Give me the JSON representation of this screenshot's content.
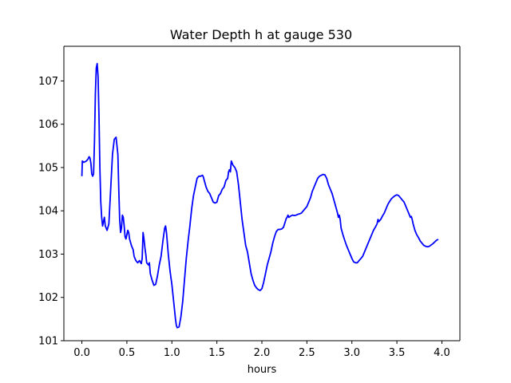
{
  "chart_data": {
    "type": "line",
    "title": "Water Depth h at gauge 530",
    "xlabel": "hours",
    "ylabel": "",
    "xlim": [
      -0.2,
      4.2
    ],
    "ylim": [
      101.0,
      107.8
    ],
    "grid": false,
    "x_ticks": [
      0.0,
      0.5,
      1.0,
      1.5,
      2.0,
      2.5,
      3.0,
      3.5,
      4.0
    ],
    "x_tick_labels": [
      "0.0",
      "0.5",
      "1.0",
      "1.5",
      "2.0",
      "2.5",
      "3.0",
      "3.5",
      "4.0"
    ],
    "y_ticks": [
      101,
      102,
      103,
      104,
      105,
      106,
      107
    ],
    "y_tick_labels": [
      "101",
      "102",
      "103",
      "104",
      "105",
      "106",
      "107"
    ],
    "series": [
      {
        "color": "#0000ff",
        "points": [
          [
            0.0,
            104.8
          ],
          [
            0.005,
            105.15
          ],
          [
            0.02,
            105.12
          ],
          [
            0.05,
            105.15
          ],
          [
            0.07,
            105.2
          ],
          [
            0.08,
            105.25
          ],
          [
            0.09,
            105.22
          ],
          [
            0.1,
            105.1
          ],
          [
            0.11,
            104.85
          ],
          [
            0.12,
            104.8
          ],
          [
            0.13,
            104.85
          ],
          [
            0.14,
            105.6
          ],
          [
            0.15,
            106.7
          ],
          [
            0.16,
            107.3
          ],
          [
            0.17,
            107.4
          ],
          [
            0.18,
            107.1
          ],
          [
            0.19,
            106.2
          ],
          [
            0.2,
            105.0
          ],
          [
            0.21,
            104.2
          ],
          [
            0.22,
            103.85
          ],
          [
            0.23,
            103.65
          ],
          [
            0.24,
            103.75
          ],
          [
            0.25,
            103.85
          ],
          [
            0.26,
            103.65
          ],
          [
            0.28,
            103.55
          ],
          [
            0.3,
            103.7
          ],
          [
            0.32,
            104.5
          ],
          [
            0.34,
            105.3
          ],
          [
            0.36,
            105.65
          ],
          [
            0.38,
            105.7
          ],
          [
            0.4,
            105.3
          ],
          [
            0.41,
            104.5
          ],
          [
            0.42,
            103.8
          ],
          [
            0.43,
            103.5
          ],
          [
            0.44,
            103.6
          ],
          [
            0.45,
            103.9
          ],
          [
            0.46,
            103.85
          ],
          [
            0.47,
            103.65
          ],
          [
            0.48,
            103.4
          ],
          [
            0.49,
            103.35
          ],
          [
            0.5,
            103.45
          ],
          [
            0.51,
            103.55
          ],
          [
            0.52,
            103.5
          ],
          [
            0.53,
            103.35
          ],
          [
            0.55,
            103.2
          ],
          [
            0.57,
            103.1
          ],
          [
            0.58,
            102.95
          ],
          [
            0.6,
            102.85
          ],
          [
            0.62,
            102.8
          ],
          [
            0.64,
            102.85
          ],
          [
            0.66,
            102.78
          ],
          [
            0.67,
            102.9
          ],
          [
            0.68,
            103.5
          ],
          [
            0.69,
            103.35
          ],
          [
            0.7,
            103.15
          ],
          [
            0.71,
            103.0
          ],
          [
            0.72,
            102.8
          ],
          [
            0.74,
            102.75
          ],
          [
            0.75,
            102.8
          ],
          [
            0.76,
            102.55
          ],
          [
            0.78,
            102.4
          ],
          [
            0.8,
            102.28
          ],
          [
            0.82,
            102.3
          ],
          [
            0.84,
            102.5
          ],
          [
            0.86,
            102.75
          ],
          [
            0.88,
            102.95
          ],
          [
            0.9,
            103.3
          ],
          [
            0.92,
            103.6
          ],
          [
            0.93,
            103.65
          ],
          [
            0.94,
            103.5
          ],
          [
            0.96,
            103.0
          ],
          [
            0.98,
            102.6
          ],
          [
            1.0,
            102.3
          ],
          [
            1.02,
            101.9
          ],
          [
            1.04,
            101.5
          ],
          [
            1.05,
            101.35
          ],
          [
            1.06,
            101.3
          ],
          [
            1.08,
            101.32
          ],
          [
            1.1,
            101.55
          ],
          [
            1.12,
            101.9
          ],
          [
            1.14,
            102.4
          ],
          [
            1.16,
            102.9
          ],
          [
            1.18,
            103.3
          ],
          [
            1.2,
            103.65
          ],
          [
            1.22,
            104.05
          ],
          [
            1.24,
            104.35
          ],
          [
            1.26,
            104.55
          ],
          [
            1.28,
            104.75
          ],
          [
            1.3,
            104.8
          ],
          [
            1.32,
            104.8
          ],
          [
            1.34,
            104.82
          ],
          [
            1.35,
            104.78
          ],
          [
            1.36,
            104.7
          ],
          [
            1.38,
            104.55
          ],
          [
            1.4,
            104.45
          ],
          [
            1.42,
            104.4
          ],
          [
            1.44,
            104.3
          ],
          [
            1.46,
            104.2
          ],
          [
            1.48,
            104.18
          ],
          [
            1.5,
            104.2
          ],
          [
            1.52,
            104.35
          ],
          [
            1.54,
            104.4
          ],
          [
            1.56,
            104.5
          ],
          [
            1.58,
            104.55
          ],
          [
            1.6,
            104.7
          ],
          [
            1.62,
            104.75
          ],
          [
            1.63,
            104.9
          ],
          [
            1.64,
            104.95
          ],
          [
            1.65,
            104.9
          ],
          [
            1.66,
            105.15
          ],
          [
            1.67,
            105.1
          ],
          [
            1.68,
            105.05
          ],
          [
            1.7,
            105.0
          ],
          [
            1.72,
            104.9
          ],
          [
            1.74,
            104.6
          ],
          [
            1.76,
            104.2
          ],
          [
            1.78,
            103.8
          ],
          [
            1.8,
            103.5
          ],
          [
            1.82,
            103.2
          ],
          [
            1.84,
            103.05
          ],
          [
            1.86,
            102.8
          ],
          [
            1.88,
            102.55
          ],
          [
            1.9,
            102.4
          ],
          [
            1.92,
            102.28
          ],
          [
            1.94,
            102.22
          ],
          [
            1.96,
            102.18
          ],
          [
            1.98,
            102.16
          ],
          [
            2.0,
            102.2
          ],
          [
            2.02,
            102.35
          ],
          [
            2.04,
            102.55
          ],
          [
            2.06,
            102.75
          ],
          [
            2.08,
            102.9
          ],
          [
            2.1,
            103.05
          ],
          [
            2.12,
            103.25
          ],
          [
            2.14,
            103.4
          ],
          [
            2.16,
            103.52
          ],
          [
            2.18,
            103.57
          ],
          [
            2.2,
            103.57
          ],
          [
            2.22,
            103.58
          ],
          [
            2.24,
            103.62
          ],
          [
            2.26,
            103.75
          ],
          [
            2.27,
            103.82
          ],
          [
            2.28,
            103.85
          ],
          [
            2.29,
            103.9
          ],
          [
            2.3,
            103.85
          ],
          [
            2.32,
            103.88
          ],
          [
            2.34,
            103.9
          ],
          [
            2.36,
            103.89
          ],
          [
            2.38,
            103.9
          ],
          [
            2.4,
            103.92
          ],
          [
            2.42,
            103.93
          ],
          [
            2.44,
            103.95
          ],
          [
            2.46,
            104.0
          ],
          [
            2.48,
            104.05
          ],
          [
            2.5,
            104.1
          ],
          [
            2.52,
            104.2
          ],
          [
            2.54,
            104.3
          ],
          [
            2.56,
            104.45
          ],
          [
            2.58,
            104.55
          ],
          [
            2.6,
            104.65
          ],
          [
            2.62,
            104.75
          ],
          [
            2.64,
            104.8
          ],
          [
            2.66,
            104.82
          ],
          [
            2.68,
            104.84
          ],
          [
            2.7,
            104.83
          ],
          [
            2.72,
            104.75
          ],
          [
            2.74,
            104.6
          ],
          [
            2.76,
            104.5
          ],
          [
            2.78,
            104.4
          ],
          [
            2.8,
            104.25
          ],
          [
            2.82,
            104.1
          ],
          [
            2.84,
            103.95
          ],
          [
            2.85,
            103.85
          ],
          [
            2.86,
            103.9
          ],
          [
            2.87,
            103.8
          ],
          [
            2.88,
            103.6
          ],
          [
            2.9,
            103.45
          ],
          [
            2.92,
            103.32
          ],
          [
            2.94,
            103.2
          ],
          [
            2.96,
            103.1
          ],
          [
            2.98,
            103.0
          ],
          [
            3.0,
            102.9
          ],
          [
            3.02,
            102.82
          ],
          [
            3.04,
            102.8
          ],
          [
            3.06,
            102.8
          ],
          [
            3.08,
            102.85
          ],
          [
            3.1,
            102.9
          ],
          [
            3.12,
            102.95
          ],
          [
            3.14,
            103.05
          ],
          [
            3.16,
            103.15
          ],
          [
            3.18,
            103.25
          ],
          [
            3.2,
            103.35
          ],
          [
            3.22,
            103.45
          ],
          [
            3.24,
            103.55
          ],
          [
            3.26,
            103.62
          ],
          [
            3.28,
            103.7
          ],
          [
            3.29,
            103.8
          ],
          [
            3.3,
            103.75
          ],
          [
            3.31,
            103.78
          ],
          [
            3.32,
            103.8
          ],
          [
            3.34,
            103.88
          ],
          [
            3.36,
            103.95
          ],
          [
            3.38,
            104.05
          ],
          [
            3.4,
            104.15
          ],
          [
            3.42,
            104.22
          ],
          [
            3.44,
            104.28
          ],
          [
            3.46,
            104.32
          ],
          [
            3.48,
            104.35
          ],
          [
            3.5,
            104.37
          ],
          [
            3.52,
            104.35
          ],
          [
            3.54,
            104.3
          ],
          [
            3.56,
            104.25
          ],
          [
            3.58,
            104.2
          ],
          [
            3.6,
            104.1
          ],
          [
            3.62,
            104.0
          ],
          [
            3.64,
            103.9
          ],
          [
            3.65,
            103.85
          ],
          [
            3.66,
            103.87
          ],
          [
            3.67,
            103.8
          ],
          [
            3.68,
            103.7
          ],
          [
            3.7,
            103.55
          ],
          [
            3.72,
            103.45
          ],
          [
            3.74,
            103.38
          ],
          [
            3.76,
            103.3
          ],
          [
            3.78,
            103.25
          ],
          [
            3.8,
            103.2
          ],
          [
            3.82,
            103.18
          ],
          [
            3.84,
            103.17
          ],
          [
            3.86,
            103.18
          ],
          [
            3.88,
            103.21
          ],
          [
            3.9,
            103.24
          ],
          [
            3.92,
            103.28
          ],
          [
            3.94,
            103.32
          ],
          [
            3.96,
            103.34
          ]
        ]
      }
    ]
  }
}
